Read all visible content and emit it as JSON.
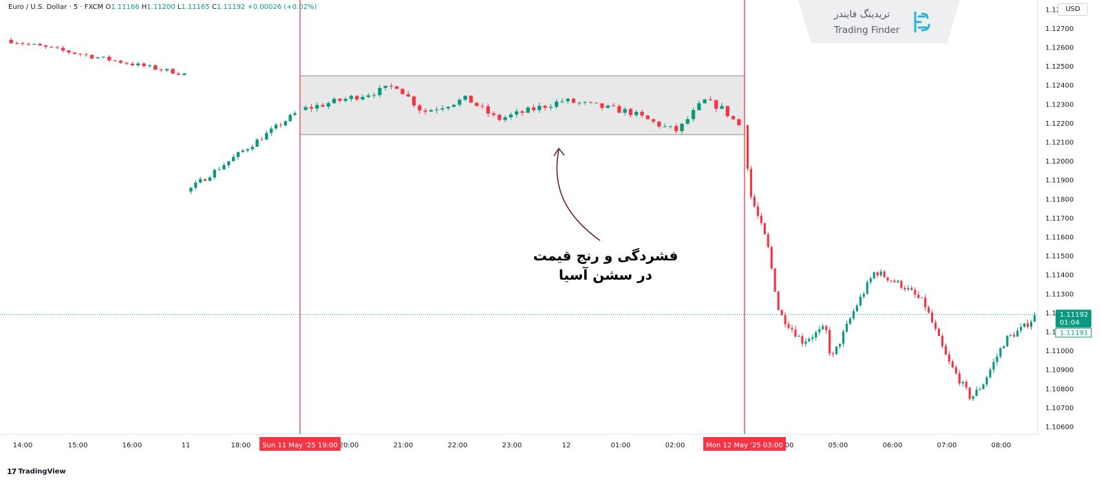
{
  "header": {
    "symbol_name": "Euro / U.S. Dollar · 5 · FXCM",
    "open_label": "O",
    "open_value": "1.11166",
    "high_label": "H",
    "high_value": "1.11200",
    "low_label": "L",
    "low_value": "1.11165",
    "close_label": "C",
    "close_value": "1.11192",
    "change_value": "+0.00026 (+0.02%)"
  },
  "currency": "USD",
  "watermark": {
    "persian": "تریدینگ فایندر",
    "english": "Trading Finder"
  },
  "branding": {
    "logo_mark": "17",
    "name": "TradingView"
  },
  "annotation": {
    "line1": "فشردگی و رنج قیمت",
    "line2": "در سشن آسیا"
  },
  "colors": {
    "up": "#089981",
    "down": "#f23645",
    "session_line": "#f23645",
    "range_fill": "#e8e8e8",
    "arrow": "#6b1d3c",
    "last_price": "#089981"
  },
  "chart_data": {
    "type": "candlestick",
    "symbol": "EUR/USD",
    "timeframe": "5",
    "y_axis": {
      "ticks": [
        "1.12800",
        "1.12700",
        "1.12600",
        "1.12500",
        "1.12400",
        "1.12300",
        "1.12200",
        "1.12100",
        "1.12000",
        "1.11900",
        "1.11800",
        "1.11700",
        "1.11600",
        "1.11500",
        "1.11400",
        "1.11300",
        "1.11200",
        "1.11100",
        "1.11000",
        "1.10900",
        "1.10800",
        "1.10700",
        "1.10600"
      ],
      "ylim": [
        1.1056,
        1.1285
      ]
    },
    "x_axis": {
      "ticks": [
        "14:00",
        "15:00",
        "16:00",
        "11",
        "18:00",
        "20:00",
        "21:00",
        "22:00",
        "23:00",
        "12",
        "01:00",
        "02:00",
        "04:00",
        "05:00",
        "06:00",
        "07:00",
        "08:00"
      ],
      "markers": [
        "Sun 11 May '25   19:00",
        "Mon 12 May '25   03:00"
      ]
    },
    "last_price": {
      "value": "1.11192",
      "countdown": "01:04",
      "secondary": "1.11191"
    },
    "asia_range": {
      "high": 1.1245,
      "low": 1.1214
    },
    "segments": [
      {
        "name": "before-gap",
        "start": 1.1264,
        "end": 1.1246,
        "n": 31,
        "wiggle": 0.00012
      },
      {
        "name": "pre-session",
        "start": 1.1184,
        "end": 1.1225,
        "n": 23,
        "wiggle": 0.00015
      },
      {
        "name": "asian-session",
        "start": 1.1227,
        "end": 1.1219,
        "n": 77,
        "wiggle": 0.00018,
        "path": [
          [
            0,
            1.1227
          ],
          [
            0.18,
            1.1237
          ],
          [
            0.22,
            1.124
          ],
          [
            0.28,
            1.1226
          ],
          [
            0.38,
            1.1233
          ],
          [
            0.45,
            1.1222
          ],
          [
            0.6,
            1.1232
          ],
          [
            0.75,
            1.1226
          ],
          [
            0.83,
            1.1218
          ],
          [
            0.86,
            1.1216
          ],
          [
            0.92,
            1.1232
          ],
          [
            0.96,
            1.1228
          ],
          [
            1,
            1.1219
          ]
        ]
      },
      {
        "name": "london-session",
        "start": 1.1219,
        "end": 1.1118,
        "n": 85,
        "wiggle": 0.0002,
        "path": [
          [
            0,
            1.1219
          ],
          [
            0.02,
            1.1183
          ],
          [
            0.08,
            1.1156
          ],
          [
            0.12,
            1.112
          ],
          [
            0.2,
            1.1105
          ],
          [
            0.28,
            1.1112
          ],
          [
            0.3,
            1.1095
          ],
          [
            0.38,
            1.1122
          ],
          [
            0.45,
            1.1142
          ],
          [
            0.55,
            1.1134
          ],
          [
            0.62,
            1.1125
          ],
          [
            0.7,
            1.1095
          ],
          [
            0.78,
            1.1075
          ],
          [
            0.82,
            1.1082
          ],
          [
            0.9,
            1.1106
          ],
          [
            0.96,
            1.1112
          ],
          [
            1,
            1.1118
          ]
        ]
      }
    ]
  }
}
